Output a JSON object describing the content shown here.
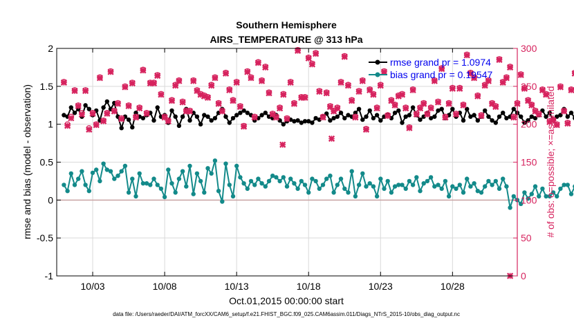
{
  "chart_data": {
    "type": "line",
    "title": "Southern Hemisphere",
    "subtitle": "AIRS_TEMPERATURE @ 313 hPa",
    "xlabel": "Oct.01,2015 00:00:00 start",
    "ylabel": "rmse and bias (model - observation)",
    "ylabel_right": "# of obs: o=possible; ×=assimilated",
    "footer": "data file: /Users/raeder/DAI/ATM_forcXX/CAM6_setup/f.e21.FHIST_BGC.f09_025.CAM6assim.011/Diags_NTrS_2015-10/obs_diag_output.nc",
    "xlim": [
      0.5,
      32.5
    ],
    "ylim": [
      -1,
      2
    ],
    "ylim_right": [
      0,
      300
    ],
    "x_ticks": [
      3,
      8,
      13,
      18,
      23,
      28
    ],
    "x_tick_labels": [
      "10/03",
      "10/08",
      "10/13",
      "10/18",
      "10/23",
      "10/28"
    ],
    "y_ticks": [
      -1,
      -0.5,
      0,
      0.5,
      1,
      1.5,
      2
    ],
    "y_tick_labels": [
      "-1",
      "-0.5",
      "0",
      "0.5",
      "1",
      "1.5",
      "2"
    ],
    "y_ticks_right": [
      0,
      50,
      100,
      150,
      200,
      250,
      300
    ],
    "y_tick_labels_right": [
      "0",
      "50",
      "100",
      "150",
      "200",
      "250",
      "300"
    ],
    "grid": true,
    "legend_position": "top-right",
    "x_start": 1.0,
    "x_step": 0.25,
    "series": [
      {
        "name": "rmse grand pr = 1.0974",
        "color": "#000000",
        "marker": "circle",
        "values": [
          1.12,
          1.1,
          1.22,
          1.15,
          1.2,
          1.1,
          1.25,
          1.2,
          1.12,
          1.18,
          1.05,
          1.22,
          1.3,
          1.2,
          1.28,
          1.1,
          0.95,
          1.1,
          1.06,
          0.96,
          1.15,
          1.1,
          1.08,
          1.12,
          1.15,
          1.05,
          1.22,
          1.1,
          1.12,
          1.02,
          1.18,
          1.1,
          0.98,
          1.1,
          1.2,
          1.05,
          1.15,
          1.1,
          1.0,
          1.12,
          1.1,
          1.05,
          1.08,
          1.15,
          1.2,
          1.1,
          1.02,
          1.08,
          1.12,
          1.15,
          1.18,
          1.15,
          1.12,
          1.05,
          1.08,
          1.12,
          1.15,
          1.1,
          1.08,
          1.12,
          1.05,
          1.0,
          1.04,
          1.06,
          1.04,
          1.05,
          1.02,
          1.04,
          1.04,
          1.02,
          1.08,
          1.06,
          1.1,
          1.14,
          1.05,
          1.08,
          1.1,
          1.15,
          1.08,
          1.12,
          1.1,
          1.15,
          1.2,
          1.06,
          1.1,
          1.18,
          1.08,
          1.12,
          1.05,
          1.1,
          1.13,
          1.08,
          1.15,
          1.18,
          1.02,
          1.1,
          1.12,
          1.22,
          1.12,
          1.06,
          1.1,
          1.15,
          1.08,
          1.1,
          1.18,
          1.2,
          1.08,
          1.12,
          1.2,
          1.1,
          1.15,
          1.05,
          1.2,
          1.1,
          1.12,
          1.05,
          1.1,
          1.18,
          1.1,
          1.05,
          1.02,
          1.1,
          1.15,
          1.08,
          1.1,
          1.2,
          1.15,
          1.1,
          1.02,
          1.05,
          1.1,
          1.08,
          1.12,
          1.18,
          1.1,
          1.15,
          1.05,
          1.1,
          1.12,
          1.2,
          1.1,
          1.15,
          1.08,
          1.12,
          1.18,
          1.15,
          1.08,
          1.1,
          1.05,
          1.0,
          1.2,
          1.1,
          1.12,
          1.05,
          1.1,
          1.14,
          1.18,
          1.08,
          1.12,
          1.05,
          0.95,
          1.08,
          1.1,
          1.02,
          1.05,
          1.1,
          1.0,
          1.05,
          1.1,
          1.02,
          1.05,
          0.95,
          1.0,
          0.92,
          1.05,
          1.0,
          1.06,
          1.04,
          1.05,
          1.0,
          1.08,
          0.98,
          0.95,
          1.12,
          1.1,
          1.02,
          1.0,
          1.05,
          1.0,
          1.08,
          1.0,
          1.05,
          1.2,
          1.08
        ]
      },
      {
        "name": "bias grand pr = 0.19547",
        "color": "#138a8a",
        "marker": "circle",
        "values": [
          0.2,
          0.12,
          0.35,
          0.2,
          0.28,
          0.38,
          0.2,
          0.12,
          0.36,
          0.4,
          0.25,
          0.48,
          0.4,
          0.38,
          0.28,
          0.32,
          0.38,
          0.45,
          0.1,
          0.28,
          0.05,
          0.35,
          0.22,
          0.22,
          0.2,
          0.28,
          0.2,
          0.15,
          0.04,
          0.4,
          0.22,
          0.1,
          0.28,
          0.38,
          0.18,
          0.45,
          0.08,
          0.35,
          0.25,
          0.1,
          0.42,
          0.35,
          0.52,
          0.12,
          -0.02,
          0.48,
          0.2,
          0.05,
          0.45,
          0.3,
          0.22,
          0.15,
          0.25,
          0.2,
          0.28,
          0.22,
          0.18,
          0.25,
          0.32,
          0.3,
          0.25,
          0.3,
          0.18,
          0.28,
          0.22,
          0.15,
          0.25,
          0.2,
          0.1,
          0.28,
          0.25,
          0.15,
          0.2,
          0.28,
          0.32,
          0.1,
          0.2,
          0.28,
          0.15,
          0.1,
          0.38,
          0.05,
          0.2,
          0.35,
          0.18,
          0.22,
          0.18,
          0.05,
          0.28,
          0.15,
          0.25,
          0.1,
          0.18,
          0.2,
          0.2,
          0.15,
          0.25,
          0.2,
          0.3,
          0.12,
          0.22,
          0.25,
          0.3,
          0.18,
          0.2,
          0.15,
          0.25,
          0.05,
          0.18,
          0.15,
          0.2,
          0.1,
          0.28,
          0.18,
          0.22,
          0.12,
          0.1,
          0.18,
          0.25,
          0.2,
          0.25,
          0.15,
          0.28,
          0.18,
          -0.1,
          0.05,
          0.0,
          -0.05,
          0.1,
          0.02,
          0.08,
          0.18,
          0.05,
          0.15,
          0.05,
          0.05,
          0.1,
          0.05,
          0.15,
          0.2,
          0.2,
          0.08,
          0.18,
          0.05,
          0.12,
          0.2,
          0.15,
          0.05,
          0.22,
          0.15,
          0.1,
          0.15,
          0.18,
          0.2,
          0.05,
          0.1,
          0.0,
          0.25,
          0.12,
          0.2,
          0.15,
          0.18,
          0.22,
          0.2,
          0.18,
          0.12,
          0.15,
          0.25,
          0.2,
          0.15,
          0.22,
          0.18,
          0.12,
          0.15,
          0.2,
          0.08,
          0.18,
          0.15,
          0.22,
          0.12,
          0.18,
          0.08,
          -0.02,
          -0.05,
          0.2,
          0.05,
          0.0,
          0.02,
          0.12,
          -0.1,
          0.0,
          0.05,
          0.05,
          0.0,
          -0.02,
          0.25
        ]
      }
    ],
    "obs_series": {
      "name": "# of obs",
      "color": "#d6235e",
      "axis": "right",
      "possible": [
        256,
        200,
        210,
        245,
        225,
        215,
        245,
        195,
        215,
        200,
        262,
        205,
        215,
        270,
        218,
        228,
        208,
        250,
        225,
        255,
        210,
        222,
        272,
        215,
        255,
        255,
        265,
        240,
        210,
        205,
        232,
        252,
        258,
        230,
        218,
        218,
        258,
        245,
        240,
        238,
        236,
        252,
        262,
        228,
        218,
        268,
        246,
        232,
        256,
        224,
        198,
        270,
        262,
        210,
        282,
        258,
        276,
        242,
        214,
        210,
        222,
        240,
        208,
        256,
        228,
        298,
        236,
        236,
        288,
        280,
        294,
        244,
        210,
        242,
        224,
        218,
        222,
        256,
        290,
        252,
        232,
        210,
        244,
        258,
        194,
        246,
        240,
        222,
        252,
        270,
        212,
        232,
        226,
        238,
        240,
        222,
        196,
        246,
        214,
        222,
        228,
        214,
        222,
        258,
        230,
        274,
        210,
        228,
        248,
        214,
        248,
        226,
        292,
        268,
        262,
        238,
        212,
        252,
        258,
        228,
        224,
        286,
        256,
        262,
        276,
        210,
        228,
        266,
        248,
        232,
        226,
        218,
        214,
        246,
        240,
        204,
        206,
        200,
        250,
        218,
        202,
        246,
        268,
        256,
        218,
        234,
        246,
        218,
        236,
        210,
        220,
        234,
        252,
        214,
        268,
        212,
        248,
        274,
        244,
        230,
        210,
        264,
        232,
        220,
        238,
        204,
        266,
        212,
        232,
        218,
        212,
        266,
        256,
        210,
        290,
        262,
        218,
        254,
        232,
        218,
        208,
        270,
        222,
        262,
        238,
        232,
        248,
        214,
        222,
        214,
        208,
        258,
        246,
        218,
        232,
        238
      ],
      "assimilated": [
        255,
        198,
        208,
        244,
        224,
        213,
        244,
        193,
        214,
        199,
        261,
        204,
        214,
        269,
        217,
        227,
        207,
        249,
        224,
        254,
        209,
        221,
        271,
        214,
        254,
        254,
        264,
        239,
        209,
        204,
        231,
        251,
        257,
        229,
        217,
        217,
        257,
        244,
        239,
        237,
        235,
        251,
        261,
        227,
        217,
        267,
        245,
        231,
        255,
        223,
        197,
        269,
        261,
        209,
        281,
        257,
        275,
        241,
        213,
        209,
        221,
        239,
        207,
        255,
        227,
        297,
        235,
        235,
        287,
        279,
        293,
        243,
        209,
        241,
        223,
        217,
        221,
        255,
        289,
        251,
        231,
        209,
        243,
        257,
        193,
        245,
        239,
        221,
        251,
        269,
        211,
        231,
        225,
        237,
        239,
        221,
        195,
        245,
        213,
        221,
        227,
        213,
        221,
        257,
        229,
        273,
        209,
        227,
        247,
        213,
        247,
        225,
        291,
        267,
        261,
        237,
        211,
        251,
        257,
        227,
        223,
        285,
        255,
        261,
        275,
        209,
        227,
        265,
        247,
        231,
        225,
        217,
        213,
        245,
        239,
        203,
        205,
        199,
        249,
        217,
        201,
        245,
        267,
        255,
        217,
        233,
        245,
        217,
        235,
        209,
        219,
        233,
        251,
        213,
        267,
        211,
        247,
        273,
        243,
        229,
        209,
        263,
        231,
        219,
        237,
        203,
        265,
        211,
        231,
        217,
        211,
        265,
        255,
        209,
        289,
        261,
        217,
        253,
        231,
        217,
        207,
        269,
        221,
        261,
        237,
        231,
        247,
        213,
        221,
        213,
        207,
        257,
        245,
        217,
        231,
        237
      ],
      "extra_points": [
        {
          "x": 16.2,
          "y": 173
        },
        {
          "x": 19.6,
          "y": 181
        },
        {
          "x": 32.0,
          "y": 0
        }
      ]
    }
  }
}
